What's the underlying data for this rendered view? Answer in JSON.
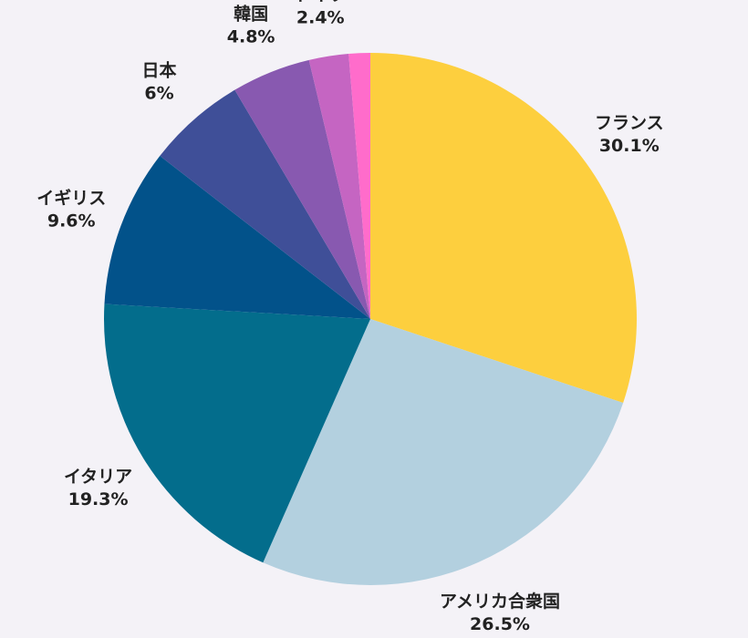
{
  "chart_data": {
    "type": "pie",
    "start": "top",
    "direction": "clockwise",
    "slices": [
      {
        "name": "フランス",
        "value": 30.1,
        "label": "30.1%",
        "color": "#fdcf3e"
      },
      {
        "name": "アメリカ合衆国",
        "value": 26.5,
        "label": "26.5%",
        "color": "#b3d0df"
      },
      {
        "name": "イタリア",
        "value": 19.3,
        "label": "19.3%",
        "color": "#036d8c"
      },
      {
        "name": "イギリス",
        "value": 9.6,
        "label": "9.6%",
        "color": "#02528a"
      },
      {
        "name": "日本",
        "value": 6,
        "label": "6%",
        "color": "#3f4f98"
      },
      {
        "name": "韓国",
        "value": 4.8,
        "label": "4.8%",
        "color": "#8859b0"
      },
      {
        "name": "ドイツ",
        "value": 2.4,
        "label": "2.4%",
        "color": "#c565c2"
      },
      {
        "name": "",
        "value": 1.3,
        "label": "",
        "color": "#ff6ccb"
      }
    ]
  }
}
